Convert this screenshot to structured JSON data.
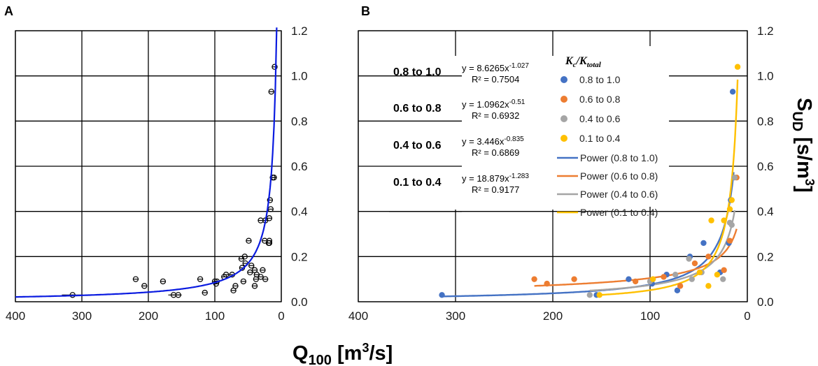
{
  "chart_data": [
    {
      "panel": "A",
      "type": "scatter",
      "xlim": [
        400,
        0
      ],
      "ylim": [
        0,
        1.2
      ],
      "x_ticks": [
        "400",
        "300",
        "200",
        "100",
        "0"
      ],
      "y_ticks": [
        "0.0",
        "0.2",
        "0.4",
        "0.6",
        "0.8",
        "1.0",
        "1.2"
      ],
      "points": [
        {
          "x": 10,
          "y": 1.04
        },
        {
          "x": 15,
          "y": 0.93
        },
        {
          "x": 13,
          "y": 0.55
        },
        {
          "x": 11,
          "y": 0.55
        },
        {
          "x": 17,
          "y": 0.45
        },
        {
          "x": 16,
          "y": 0.41
        },
        {
          "x": 18,
          "y": 0.37
        },
        {
          "x": 24,
          "y": 0.36
        },
        {
          "x": 31,
          "y": 0.36
        },
        {
          "x": 25,
          "y": 0.27
        },
        {
          "x": 18,
          "y": 0.27
        },
        {
          "x": 19,
          "y": 0.26
        },
        {
          "x": 49,
          "y": 0.27
        },
        {
          "x": 18,
          "y": 0.26
        },
        {
          "x": 55,
          "y": 0.2
        },
        {
          "x": 60,
          "y": 0.19
        },
        {
          "x": 54,
          "y": 0.17
        },
        {
          "x": 59,
          "y": 0.15
        },
        {
          "x": 45,
          "y": 0.16
        },
        {
          "x": 40,
          "y": 0.14
        },
        {
          "x": 28,
          "y": 0.14
        },
        {
          "x": 47,
          "y": 0.13
        },
        {
          "x": 37,
          "y": 0.12
        },
        {
          "x": 31,
          "y": 0.11
        },
        {
          "x": 74,
          "y": 0.12
        },
        {
          "x": 83,
          "y": 0.12
        },
        {
          "x": 86,
          "y": 0.11
        },
        {
          "x": 97,
          "y": 0.09
        },
        {
          "x": 100,
          "y": 0.09
        },
        {
          "x": 98,
          "y": 0.08
        },
        {
          "x": 38,
          "y": 0.1
        },
        {
          "x": 24,
          "y": 0.1
        },
        {
          "x": 57,
          "y": 0.09
        },
        {
          "x": 40,
          "y": 0.07
        },
        {
          "x": 69,
          "y": 0.07
        },
        {
          "x": 72,
          "y": 0.05
        },
        {
          "x": 219,
          "y": 0.1
        },
        {
          "x": 178,
          "y": 0.09
        },
        {
          "x": 122,
          "y": 0.1
        },
        {
          "x": 206,
          "y": 0.07
        },
        {
          "x": 115,
          "y": 0.04
        },
        {
          "x": 162,
          "y": 0.03
        },
        {
          "x": 155,
          "y": 0.03
        },
        {
          "x": 314,
          "y": 0.03
        }
      ],
      "fit": {
        "a": 8.5,
        "b": -1.0,
        "x_from": 400,
        "x_to": 7,
        "color": "#0a1be0"
      }
    },
    {
      "panel": "B",
      "type": "scatter",
      "xlim": [
        400,
        0
      ],
      "ylim": [
        0,
        1.2
      ],
      "x_ticks": [
        "400",
        "300",
        "200",
        "100",
        "0"
      ],
      "y_ticks": [
        "0.0",
        "0.2",
        "0.4",
        "0.6",
        "0.8",
        "1.0",
        "1.2"
      ],
      "legend_title_main": "K",
      "legend_title_sub1": "c",
      "legend_title_slash": "/K",
      "legend_title_sub2": "total",
      "series": [
        {
          "name": "0.8 to 1.0",
          "color": "#4472c4",
          "points": [
            {
              "x": 314,
              "y": 0.03
            },
            {
              "x": 155,
              "y": 0.03
            },
            {
              "x": 122,
              "y": 0.1
            },
            {
              "x": 98,
              "y": 0.08
            },
            {
              "x": 83,
              "y": 0.12
            },
            {
              "x": 72,
              "y": 0.05
            },
            {
              "x": 59,
              "y": 0.2
            },
            {
              "x": 45,
              "y": 0.26
            },
            {
              "x": 28,
              "y": 0.13
            },
            {
              "x": 19,
              "y": 0.26
            },
            {
              "x": 17,
              "y": 0.45
            },
            {
              "x": 15,
              "y": 0.93
            }
          ]
        },
        {
          "name": "0.6 to 0.8",
          "color": "#ed7d31",
          "points": [
            {
              "x": 219,
              "y": 0.1
            },
            {
              "x": 206,
              "y": 0.08
            },
            {
              "x": 178,
              "y": 0.1
            },
            {
              "x": 115,
              "y": 0.09
            },
            {
              "x": 86,
              "y": 0.11
            },
            {
              "x": 69,
              "y": 0.07
            },
            {
              "x": 54,
              "y": 0.17
            },
            {
              "x": 40,
              "y": 0.2
            },
            {
              "x": 24,
              "y": 0.14
            },
            {
              "x": 18,
              "y": 0.27
            },
            {
              "x": 11,
              "y": 0.55
            }
          ]
        },
        {
          "name": "0.4 to 0.6",
          "color": "#a5a5a5",
          "points": [
            {
              "x": 162,
              "y": 0.03
            },
            {
              "x": 100,
              "y": 0.09
            },
            {
              "x": 74,
              "y": 0.12
            },
            {
              "x": 60,
              "y": 0.19
            },
            {
              "x": 57,
              "y": 0.1
            },
            {
              "x": 47,
              "y": 0.13
            },
            {
              "x": 25,
              "y": 0.1
            },
            {
              "x": 18,
              "y": 0.35
            },
            {
              "x": 16,
              "y": 0.34
            },
            {
              "x": 13,
              "y": 0.55
            }
          ]
        },
        {
          "name": "0.1 to 0.4",
          "color": "#ffc000",
          "points": [
            {
              "x": 152,
              "y": 0.03
            },
            {
              "x": 97,
              "y": 0.1
            },
            {
              "x": 49,
              "y": 0.13
            },
            {
              "x": 40,
              "y": 0.07
            },
            {
              "x": 37,
              "y": 0.36
            },
            {
              "x": 31,
              "y": 0.12
            },
            {
              "x": 24,
              "y": 0.36
            },
            {
              "x": 18,
              "y": 0.41
            },
            {
              "x": 16,
              "y": 0.45
            },
            {
              "x": 10,
              "y": 1.04
            }
          ]
        }
      ],
      "fits": [
        {
          "label": "0.8 to 1.0",
          "name": "Power (0.8 to 1.0)",
          "eq": "y = 8.6265x",
          "exp": "-1.027",
          "r2": "R² = 0.7504",
          "a": 8.6265,
          "b": -1.027,
          "x_from": 314,
          "x_to": 14,
          "color": "#4472c4"
        },
        {
          "label": "0.6 to 0.8",
          "name": "Power (0.6 to 0.8)",
          "eq": "y = 1.0962x",
          "exp": "-0.51",
          "r2": "R² = 0.6932",
          "a": 1.0962,
          "b": -0.51,
          "x_from": 219,
          "x_to": 11,
          "color": "#ed7d31"
        },
        {
          "label": "0.4 to 0.6",
          "name": "Power (0.4 to 0.6)",
          "eq": "y = 3.446x",
          "exp": "-0.835",
          "r2": "R² = 0.6869",
          "a": 3.446,
          "b": -0.835,
          "x_from": 162,
          "x_to": 13,
          "color": "#a5a5a5"
        },
        {
          "label": "0.1 to 0.4",
          "name": "Power (0.1 to 0.4)",
          "eq": "y = 18.879x",
          "exp": "-1.283",
          "r2": "R² = 0.9177",
          "a": 18.879,
          "b": -1.283,
          "x_from": 152,
          "x_to": 10,
          "color": "#ffc000"
        }
      ]
    }
  ],
  "x_title": {
    "main": "Q",
    "sub": "100",
    "unit_a": " [m",
    "sup": "3",
    "unit_b": "/s]"
  },
  "y_title": {
    "main": "S",
    "sub": "UD",
    "unit_a": " [s/m",
    "sup": "3",
    "unit_b": "]"
  }
}
